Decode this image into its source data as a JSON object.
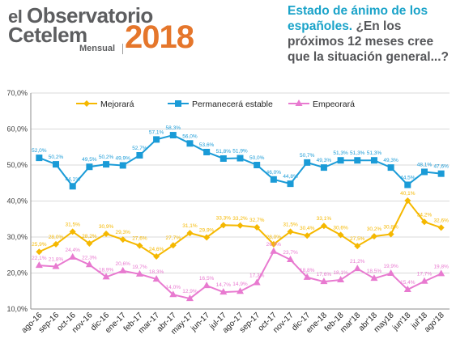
{
  "header": {
    "logo_line1_a": "el",
    "logo_line1_b": "Observatorio",
    "logo_line2": "Cetelem",
    "logo_year": "2018",
    "logo_sub": "Mensual",
    "question_blue": "Estado de ánimo de los españoles.",
    "question_rest": "¿En los próximos 12 meses cree que la situación general...?"
  },
  "colors": {
    "mejorara": "#f5b800",
    "permanecera": "#1a9bd7",
    "empeorara": "#e87ad0",
    "logo_grey": "#5d5e60",
    "logo_orange": "#e5762b",
    "title_blue": "#1aa3c9"
  },
  "chart_data": {
    "type": "line",
    "categories": [
      "ago-16",
      "sep-16",
      "oct-16",
      "nov-16",
      "dic-16",
      "ene-17",
      "feb-17",
      "mar-17",
      "abr-17",
      "may-17",
      "jun-17",
      "jul-17",
      "ago-17",
      "sep-17",
      "oct-17",
      "nov-17",
      "dic-17",
      "ene-18",
      "feb-18",
      "mar'18",
      "abr'18",
      "may18",
      "jun'18",
      "jul'18",
      "ago'18"
    ],
    "yticks": [
      "10,0%",
      "20,0%",
      "30,0%",
      "40,0%",
      "50,0%",
      "60,0%",
      "70,0%"
    ],
    "ylim": [
      10,
      70
    ],
    "grid": true,
    "legend_position": "top",
    "series": [
      {
        "name": "Mejorará",
        "color": "#f5b800",
        "marker": "diamond",
        "values": [
          25.9,
          28.0,
          31.5,
          28.2,
          30.9,
          29.3,
          27.6,
          24.6,
          27.7,
          31.1,
          29.9,
          33.3,
          33.2,
          32.7,
          28.0,
          31.5,
          30.4,
          33.1,
          30.6,
          27.5,
          30.2,
          30.8,
          40.1,
          34.2,
          32.6
        ],
        "labels": [
          "25,9%",
          "28,0%",
          "31,5%",
          "28,2%",
          "30,9%",
          "29,3%",
          "27,6%",
          "24,6%",
          "27,7%",
          "31,1%",
          "29,9%",
          "33,3%",
          "33,2%",
          "32,7%",
          "28,0%",
          "31,5%",
          "30,4%",
          "33,1%",
          "30,6%",
          "27,5%",
          "30,2%",
          "30,8%",
          "40,1%",
          "34,2%",
          "32,6%"
        ]
      },
      {
        "name": "Permanecerá estable",
        "color": "#1a9bd7",
        "marker": "square",
        "values": [
          52.0,
          50.2,
          44.1,
          49.5,
          50.2,
          49.9,
          52.7,
          57.1,
          58.3,
          56.0,
          53.6,
          51.8,
          51.9,
          50.0,
          46.0,
          44.8,
          50.7,
          49.3,
          51.3,
          51.3,
          51.3,
          49.3,
          44.5,
          48.1,
          47.6
        ],
        "labels": [
          "52,0%",
          "50,2%",
          "44,1%",
          "49,5%",
          "50,2%",
          "49,9%",
          "52,7%",
          "57,1%",
          "58,3%",
          "56,0%",
          "53,6%",
          "51,8%",
          "51,9%",
          "50,0%",
          "46,0%",
          "44,8%",
          "50,7%",
          "49,3%",
          "51,3%",
          "51,3%",
          "51,3%",
          "49,3%",
          "44,5%",
          "48,1%",
          "47,6%"
        ]
      },
      {
        "name": "Empeorará",
        "color": "#e87ad0",
        "marker": "triangle",
        "values": [
          22.1,
          21.8,
          24.4,
          22.3,
          18.9,
          20.6,
          19.7,
          18.3,
          14.0,
          12.9,
          16.5,
          14.7,
          14.9,
          17.3,
          26.0,
          23.7,
          18.8,
          17.6,
          18.1,
          21.2,
          18.5,
          19.9,
          15.4,
          17.7,
          19.8
        ],
        "labels": [
          "22,1%",
          "21,8%",
          "24,4%",
          "22,3%",
          "18,9%",
          "20,6%",
          "19,7%",
          "18,3%",
          "14,0%",
          "12,9%",
          "16,5%",
          "14,7%",
          "14,9%",
          "17,3%",
          "26,0%",
          "23,7%",
          "18,8%",
          "17,6%",
          "18,1%",
          "21,2%",
          "18,5%",
          "19,9%",
          "15,4%",
          "17,7%",
          "19,8%"
        ]
      }
    ]
  }
}
